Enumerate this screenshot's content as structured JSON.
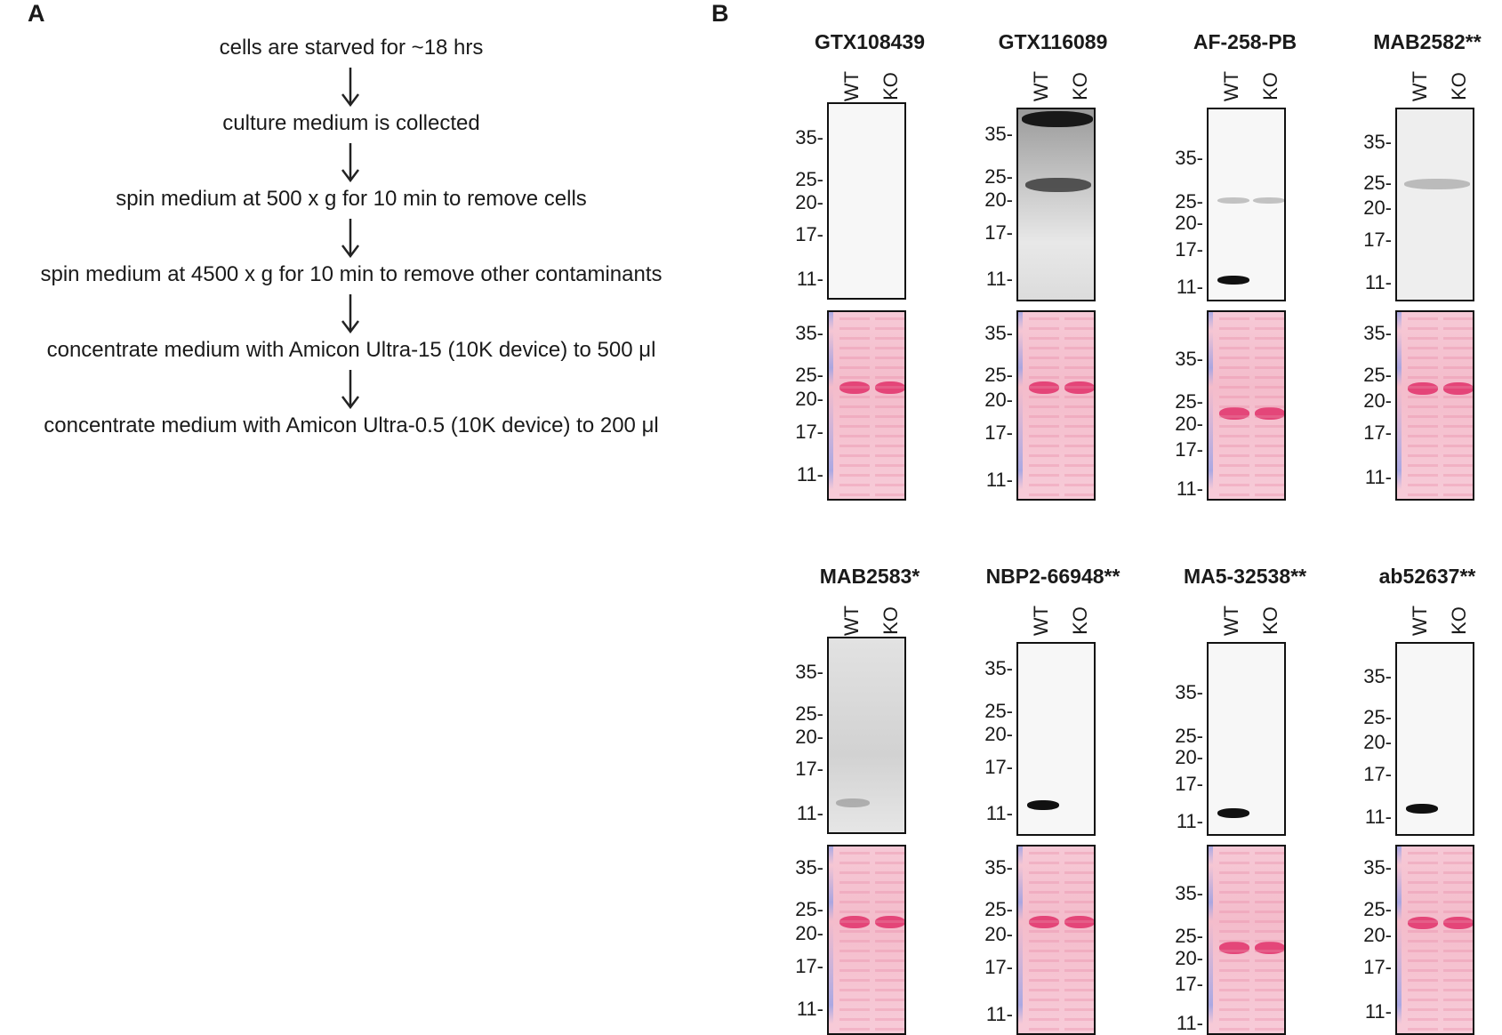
{
  "panel_a": {
    "letter": "A",
    "steps": [
      "cells are starved for ~18 hrs",
      "culture medium is collected",
      "spin medium at 500 x g for 10 min to remove cells",
      "spin medium at 4500 x g for 10 min to remove other contaminants",
      "concentrate medium with Amicon Ultra-15 (10K device) to 500 μl",
      "concentrate medium with Amicon Ultra-0.5 (10K device) to 200 μl"
    ]
  },
  "panel_b": {
    "letter": "B",
    "lanes": [
      "WT",
      "KO"
    ],
    "mw_markers": [
      "35-",
      "25-",
      "20-",
      "17-",
      "11-"
    ],
    "antibodies": [
      {
        "name": "GTX108439",
        "wb_bands": []
      },
      {
        "name": "GTX116089",
        "wb_bands": [
          "35 (smear)",
          "~23"
        ]
      },
      {
        "name": "AF-258-PB",
        "wb_bands": [
          "~12 (WT only)",
          "~25"
        ]
      },
      {
        "name": "MAB2582**",
        "wb_bands": [
          "~24 (faint)"
        ]
      },
      {
        "name": "MAB2583*",
        "wb_bands": [
          "~12 (faint, WT)"
        ]
      },
      {
        "name": "NBP2-66948**",
        "wb_bands": [
          "~12 (WT only)"
        ]
      },
      {
        "name": "MA5-32538**",
        "wb_bands": [
          "~12 (WT only)"
        ]
      },
      {
        "name": "ab52637**",
        "wb_bands": [
          "~12 (WT only)"
        ]
      }
    ]
  },
  "colors": {
    "wb_background": "#f7f7f7",
    "band_dark": "#111111",
    "ponceau_background": "#f5c3d1",
    "ponceau_band": "#e0306a",
    "ladder_blue": "#8a9be8"
  }
}
